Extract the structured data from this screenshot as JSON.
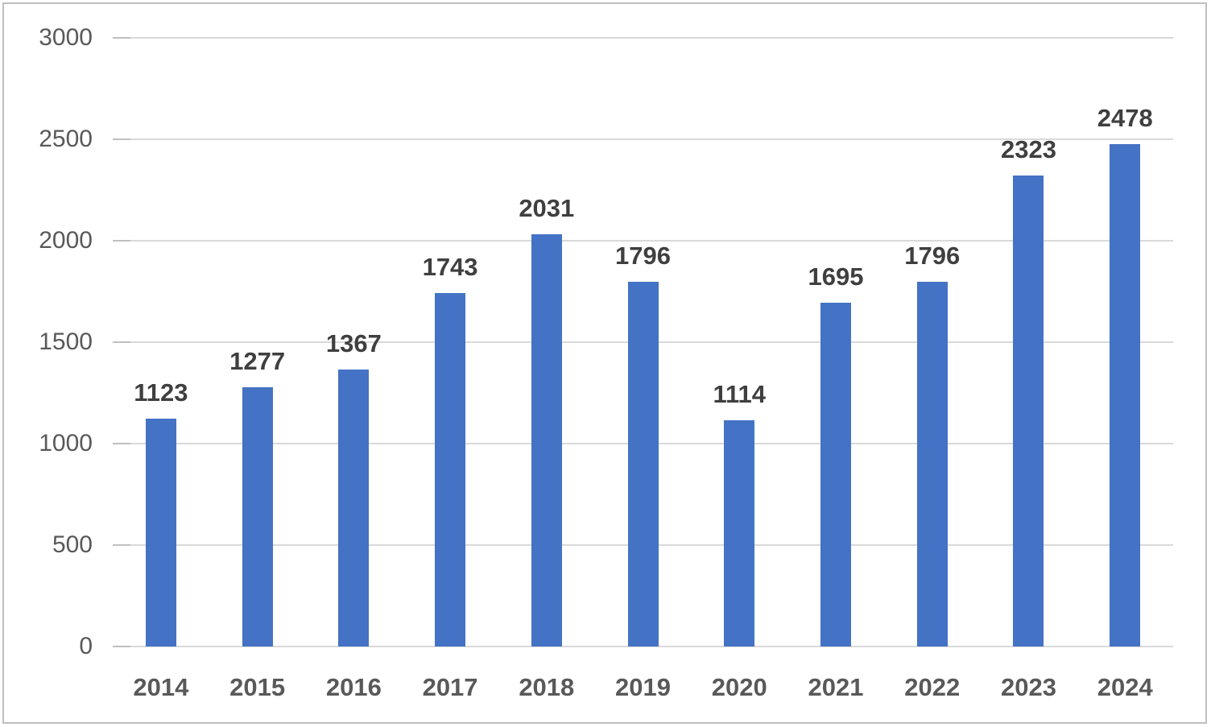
{
  "chart_data": {
    "type": "bar",
    "title": "",
    "xlabel": "",
    "ylabel": "",
    "categories": [
      "2014",
      "2015",
      "2016",
      "2017",
      "2018",
      "2019",
      "2020",
      "2021",
      "2022",
      "2023",
      "2024"
    ],
    "values": [
      1123,
      1277,
      1367,
      1743,
      2031,
      1796,
      1114,
      1695,
      1796,
      2323,
      2478
    ],
    "ylim": [
      0,
      3000
    ],
    "yticks": [
      0,
      500,
      1000,
      1500,
      2000,
      2500,
      3000
    ],
    "grid": true,
    "legend": "none",
    "data_labels": true,
    "bar_color": "#4472C4",
    "data_label_color": "#3F3F3F",
    "category_label_color": "#595959",
    "axis_tick_label_color": "#595959",
    "gridline_color": "#D9D9D9",
    "tick_mark_color": "#BFBFBF",
    "frame_border_color": "#BFBFBF",
    "background_color": "#FFFFFF"
  }
}
